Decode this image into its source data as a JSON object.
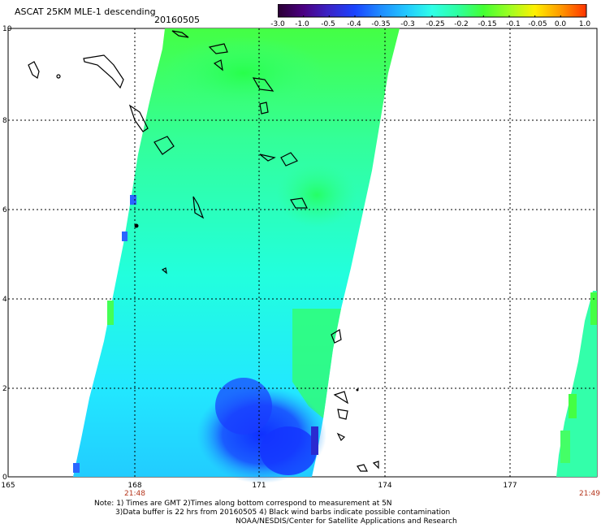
{
  "title": "ASCAT 25KM MLE-1 descending",
  "date": "20160505",
  "scale": {
    "labels": [
      "-3.0",
      "-1.0",
      "-0.5",
      "-0.4",
      "-0.35",
      "-0.3",
      "-0.25",
      "-0.2",
      "-0.15",
      "-0.1",
      "-0.05",
      "0.0",
      "1.0"
    ],
    "colors": [
      "#2a0033",
      "#4b0082",
      "#3a24c8",
      "#1a44ff",
      "#1f8cff",
      "#22c8ff",
      "#2fffe8",
      "#2dffa0",
      "#44ff33",
      "#9cff22",
      "#fff000",
      "#ff9900",
      "#ff3300"
    ]
  },
  "axes": {
    "x_ticks": [
      "165",
      "168",
      "171",
      "174",
      "177"
    ],
    "y_ticks": [
      "0",
      "2",
      "4",
      "6",
      "8",
      "10"
    ]
  },
  "times": {
    "left": "21:48",
    "right": "21:49"
  },
  "notes": {
    "line1": "Note: 1) Times are GMT 2)Times along bottom correspond to measurement at 5N",
    "line2": "3)Data buffer is 22 hrs from 20160505 4) Black wind barbs indicate possible contamination",
    "line3": "NOAA/NESDIS/Center for Satellite Applications and Research"
  }
}
